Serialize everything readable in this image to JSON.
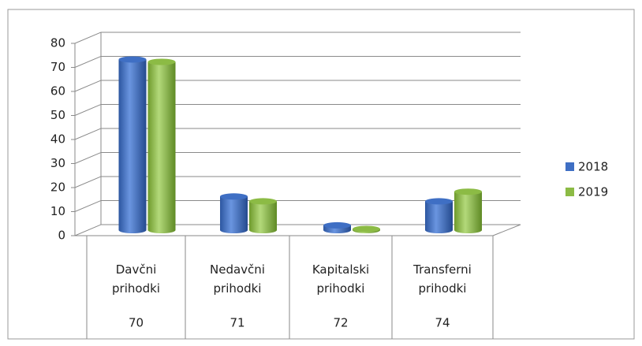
{
  "chart_data": {
    "type": "bar",
    "categories": [
      "Davčni prihodki",
      "Nedavčni prihodki",
      "Kapitalski prihodki",
      "Transferni prihodki"
    ],
    "category_codes": [
      "70",
      "71",
      "72",
      "74"
    ],
    "series": [
      {
        "name": "2018",
        "color": "#3f6fc4",
        "values": [
          71,
          14,
          2,
          12
        ]
      },
      {
        "name": "2019",
        "color": "#8cbb45",
        "values": [
          70,
          12,
          0.5,
          16
        ]
      }
    ],
    "ylim": [
      0,
      80
    ],
    "yticks": [
      0,
      10,
      20,
      30,
      40,
      50,
      60,
      70,
      80
    ],
    "grid": true,
    "legend": "right"
  }
}
